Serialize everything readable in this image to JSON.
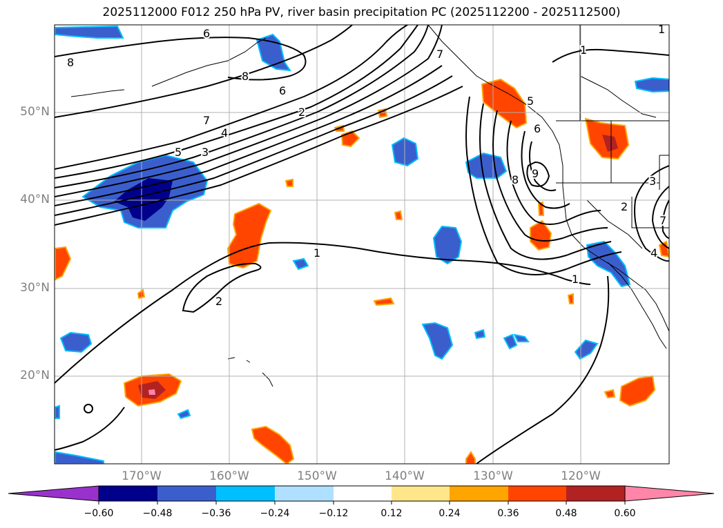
{
  "title": "2025112000 F012 250 hPa PV, river basin precipitation PC (2025112200 - 2025112500)",
  "map": {
    "lat_labels": [
      "50°N",
      "40°N",
      "30°N",
      "20°N"
    ],
    "lon_labels": [
      "170°W",
      "160°W",
      "150°W",
      "140°W",
      "130°W",
      "120°W"
    ],
    "contour_labels": [
      "8",
      "6",
      "8",
      "6",
      "7",
      "2",
      "4",
      "5",
      "3",
      "7",
      "1",
      "1",
      "2",
      "1",
      "9",
      "8",
      "5",
      "6",
      "3",
      "2",
      "4",
      "7",
      "1"
    ]
  },
  "colorbar": {
    "ticks": [
      "−0.60",
      "−0.48",
      "−0.36",
      "−0.24",
      "−0.12",
      "0.12",
      "0.24",
      "0.36",
      "0.48",
      "0.60"
    ],
    "colors": [
      "#9932cc",
      "#00008b",
      "#3a5fcd",
      "#00bfff",
      "#b0e0ff",
      "#ffffff",
      "#ffe68a",
      "#ffa500",
      "#ff4500",
      "#b22222",
      "#ff86a8"
    ]
  },
  "colors": {
    "neg_strong": "#00008b",
    "neg_mid": "#3a5fcd",
    "neg_light": "#00bfff",
    "pos_light": "#ffe68a",
    "pos_mid": "#ffa500",
    "pos_strong": "#ff4500",
    "pos_deep": "#b22222",
    "pos_max": "#ff86a8",
    "grid": "#b0b0b0",
    "label": "#808080"
  }
}
